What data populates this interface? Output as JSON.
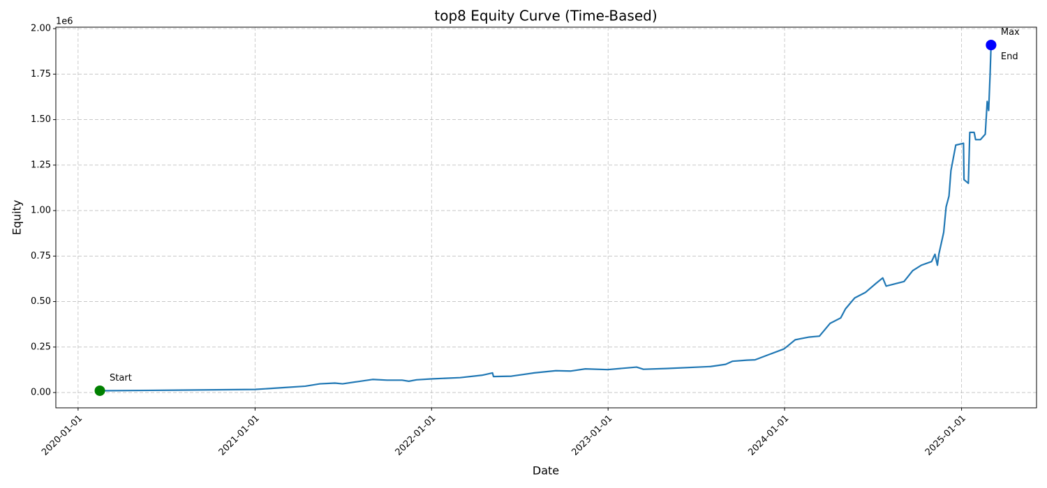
{
  "chart_data": {
    "type": "line",
    "title": "top8 Equity Curve (Time-Based)",
    "xlabel": "Date",
    "ylabel": "Equity",
    "y_offset_label": "1e6",
    "color": "#1f77b4",
    "grid": true,
    "x": [
      "2020-02-15",
      "2020-06-01",
      "2021-01-01",
      "2021-03-01",
      "2021-04-15",
      "2021-05-15",
      "2021-06-15",
      "2021-07-01",
      "2021-08-01",
      "2021-09-01",
      "2021-10-01",
      "2021-11-01",
      "2021-11-15",
      "2021-12-01",
      "2022-01-01",
      "2022-03-01",
      "2022-04-15",
      "2022-05-07",
      "2022-05-09",
      "2022-06-15",
      "2022-08-01",
      "2022-09-15",
      "2022-10-15",
      "2022-11-15",
      "2022-12-31",
      "2023-03-01",
      "2023-03-15",
      "2023-05-01",
      "2023-08-01",
      "2023-09-01",
      "2023-09-15",
      "2023-10-15",
      "2023-11-01",
      "2023-12-01",
      "2023-12-31",
      "2024-01-23",
      "2024-02-21",
      "2024-03-13",
      "2024-04-04",
      "2024-04-26",
      "2024-05-06",
      "2024-05-25",
      "2024-06-16",
      "2024-07-08",
      "2024-07-22",
      "2024-07-29",
      "2024-09-04",
      "2024-09-22",
      "2024-10-10",
      "2024-10-31",
      "2024-11-07",
      "2024-11-12",
      "2024-11-15",
      "2024-11-25",
      "2024-11-30",
      "2024-12-06",
      "2024-12-10",
      "2024-12-20",
      "2025-01-05",
      "2025-01-06",
      "2025-01-15",
      "2025-01-18",
      "2025-01-27",
      "2025-01-30",
      "2025-02-09",
      "2025-02-19",
      "2025-02-23",
      "2025-02-26",
      "2025-03-01",
      "2025-03-03"
    ],
    "values": [
      10000,
      12000,
      17000,
      27000,
      35000,
      48000,
      52000,
      48000,
      60000,
      72000,
      68000,
      68000,
      62000,
      70000,
      75000,
      82000,
      95000,
      108000,
      88000,
      90000,
      108000,
      120000,
      118000,
      130000,
      126000,
      140000,
      128000,
      132000,
      143000,
      155000,
      172000,
      178000,
      180000,
      210000,
      240000,
      290000,
      305000,
      310000,
      380000,
      410000,
      460000,
      520000,
      550000,
      600000,
      630000,
      585000,
      610000,
      670000,
      700000,
      720000,
      760000,
      700000,
      760000,
      880000,
      1020000,
      1080000,
      1220000,
      1360000,
      1370000,
      1170000,
      1150000,
      1430000,
      1430000,
      1390000,
      1390000,
      1420000,
      1600000,
      1550000,
      1750000,
      1910000
    ],
    "markers": [
      {
        "label": "Start",
        "x": "2020-02-15",
        "value": 10000,
        "color": "#008000"
      },
      {
        "label": "Max",
        "x": "2025-03-03",
        "value": 1910000,
        "color": "#0000ff"
      },
      {
        "label": "End",
        "x": "2025-03-03",
        "value": 1910000,
        "color": "#0000ff"
      }
    ],
    "xlim": [
      "2019-11-16",
      "2025-06-05"
    ],
    "xticks": [
      "2020-01-01",
      "2021-01-01",
      "2022-01-01",
      "2023-01-01",
      "2024-01-01",
      "2025-01-01"
    ],
    "ylim": [
      -84000,
      2008000
    ],
    "yticks": [
      {
        "value": 0,
        "label": "0.00"
      },
      {
        "value": 250000,
        "label": "0.25"
      },
      {
        "value": 500000,
        "label": "0.50"
      },
      {
        "value": 750000,
        "label": "0.75"
      },
      {
        "value": 1000000,
        "label": "1.00"
      },
      {
        "value": 1250000,
        "label": "1.25"
      },
      {
        "value": 1500000,
        "label": "1.50"
      },
      {
        "value": 1750000,
        "label": "1.75"
      },
      {
        "value": 2000000,
        "label": "2.00"
      }
    ]
  }
}
